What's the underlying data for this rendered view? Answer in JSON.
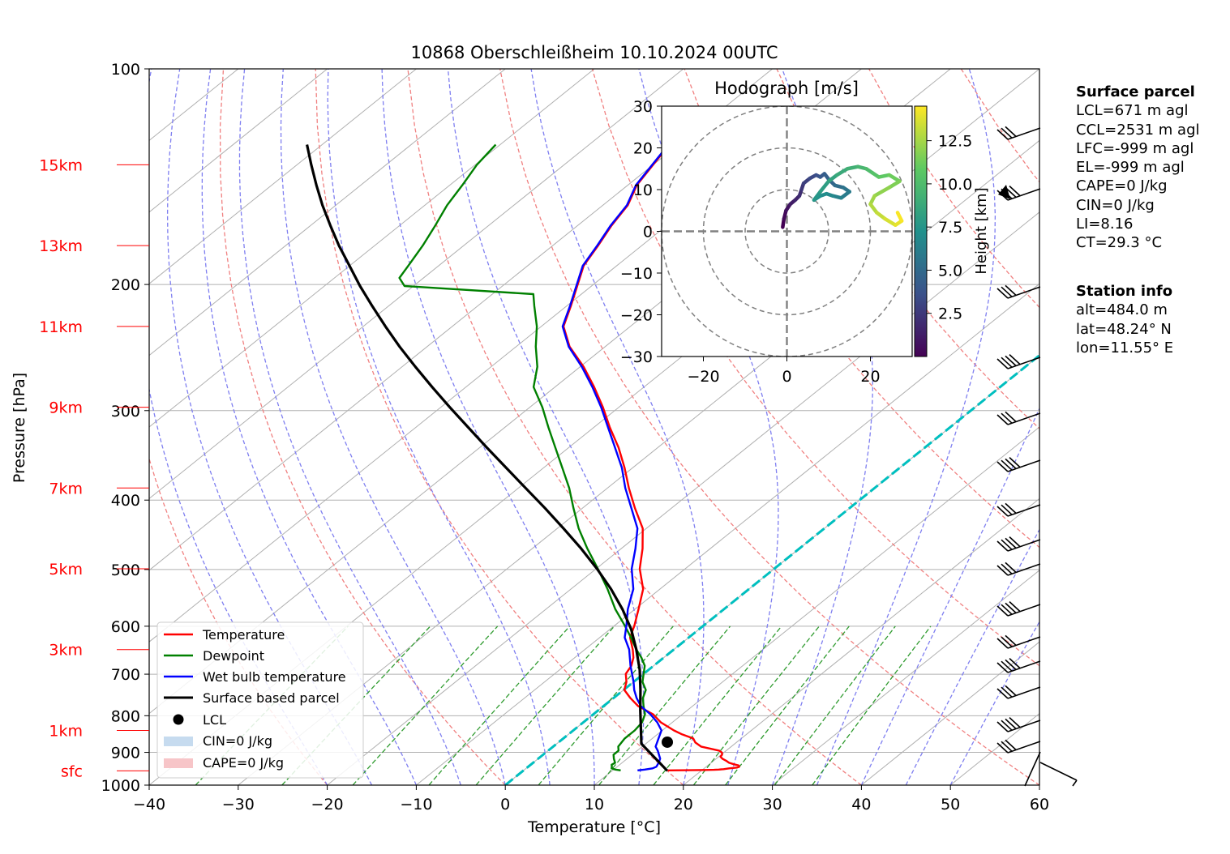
{
  "title": "10868 Oberschleißheim 10.10.2024 00UTC",
  "axes": {
    "xlabel": "Temperature [°C]",
    "ylabel": "Pressure [hPa]",
    "x_ticks": [
      "−40",
      "−30",
      "−20",
      "−10",
      "0",
      "10",
      "20",
      "30",
      "40",
      "50",
      "60"
    ],
    "y_ticks": [
      "100",
      "200",
      "300",
      "400",
      "500",
      "600",
      "700",
      "800",
      "900",
      "1000"
    ],
    "height_labels": [
      "15km",
      "13km",
      "11km",
      "9km",
      "7km",
      "5km",
      "3km",
      "1km",
      "sfc"
    ]
  },
  "legend": {
    "temperature": "Temperature",
    "dewpoint": "Dewpoint",
    "wetbulb": "Wet bulb temperature",
    "parcel": "Surface based parcel",
    "lcl": "LCL",
    "cin": "CIN=0 J/kg",
    "cape": "CAPE=0 J/kg"
  },
  "hodograph": {
    "title": "Hodograph [m/s]",
    "x_ticks": [
      "−20",
      "0",
      "20"
    ],
    "y_ticks": [
      "30",
      "20",
      "10",
      "0",
      "−10",
      "−20",
      "−30"
    ],
    "colorbar_label": "Height [km]",
    "colorbar_ticks": [
      "12.5",
      "10.0",
      "7.5",
      "5.0",
      "2.5"
    ]
  },
  "surface_parcel": {
    "heading": "Surface parcel",
    "lines": [
      "LCL=671 m agl",
      "CCL=2531 m agl",
      "LFC=-999 m agl",
      "EL=-999 m agl",
      "CAPE=0 J/kg",
      "CIN=0 J/kg",
      "LI=8.16",
      "CT=29.3 °C"
    ]
  },
  "station_info": {
    "heading": "Station info",
    "lines": [
      "alt=484.0 m",
      "lat=48.24° N",
      "lon=11.55° E"
    ]
  },
  "colors": {
    "temperature": "#ff0000",
    "dewpoint": "#008000",
    "wetbulb": "#0000ff",
    "parcel": "#000000",
    "height_labels": "#ff0000",
    "freezing_line": "#00bfbf"
  },
  "chart_data": {
    "type": "line",
    "title": "10868 Oberschleißheim 10.10.2024 00UTC",
    "xlabel": "Temperature [°C]",
    "ylabel": "Pressure [hPa]",
    "xlim": [
      -40,
      60
    ],
    "ylim": [
      1000,
      100
    ],
    "y_scale": "log",
    "skew": true,
    "grid": true,
    "legend_position": "lower-left",
    "series": [
      {
        "name": "Temperature",
        "points": [
          [
            10,
            16.2
          ],
          [
            15,
            18.5
          ],
          [
            20,
            20.4
          ],
          [
            25,
            21.3
          ],
          [
            30,
            21.8
          ],
          [
            40,
            22.3
          ],
          [
            60,
            22.8
          ],
          [
            80,
            23.6
          ],
          [
            100,
            23.7
          ],
          [
            130,
            23.5
          ],
          [
            160,
            22.8
          ],
          [
            200,
            22.0
          ],
          [
            250,
            21.4
          ],
          [
            300,
            20.7
          ],
          [
            350,
            20.2
          ],
          [
            400,
            20.1
          ],
          [
            450,
            19.8
          ],
          [
            500,
            19.2
          ],
          [
            550,
            17.9
          ],
          [
            600,
            16.6
          ],
          [
            700,
            15.4
          ],
          [
            800,
            14.6
          ],
          [
            900,
            12.8
          ],
          [
            1000,
            11.3
          ],
          [
            1200,
            8.7
          ],
          [
            1400,
            6.7
          ],
          [
            1600,
            3.9
          ],
          [
            1800,
            1.9
          ],
          [
            2000,
            0.1
          ],
          [
            2200,
            -0.8
          ],
          [
            2400,
            -2.0
          ],
          [
            2600,
            -2.5
          ],
          [
            2800,
            -3.4
          ],
          [
            3000,
            -4.6
          ],
          [
            3300,
            -6.6
          ],
          [
            3600,
            -7.8
          ],
          [
            4000,
            -9.6
          ],
          [
            4500,
            -11.9
          ],
          [
            5000,
            -15.1
          ],
          [
            5500,
            -17.6
          ],
          [
            6000,
            -20.4
          ],
          [
            6500,
            -24.1
          ],
          [
            7000,
            -27.6
          ],
          [
            7500,
            -30.9
          ],
          [
            8000,
            -34.4
          ],
          [
            8500,
            -38.2
          ],
          [
            9000,
            -41.8
          ],
          [
            9500,
            -45.6
          ],
          [
            10000,
            -49.6
          ],
          [
            10500,
            -54.0
          ],
          [
            11000,
            -57.5
          ],
          [
            11500,
            -59.5
          ],
          [
            12000,
            -61.6
          ],
          [
            12500,
            -63.7
          ],
          [
            13000,
            -64.9
          ],
          [
            13500,
            -66.2
          ],
          [
            14000,
            -67.2
          ],
          [
            14500,
            -69.0
          ],
          [
            15000,
            -70.0
          ],
          [
            15500,
            -71.0
          ]
        ]
      },
      {
        "name": "Dewpoint",
        "points": [
          [
            10,
            10.9
          ],
          [
            30,
            10.2
          ],
          [
            60,
            9.6
          ],
          [
            100,
            9.4
          ],
          [
            150,
            9.1
          ],
          [
            200,
            9.2
          ],
          [
            300,
            8.5
          ],
          [
            400,
            7.9
          ],
          [
            500,
            7.9
          ],
          [
            600,
            7.3
          ],
          [
            800,
            6.9
          ],
          [
            1000,
            6.9
          ],
          [
            1200,
            6.6
          ],
          [
            1400,
            5.8
          ],
          [
            1600,
            4.5
          ],
          [
            1800,
            3.3
          ],
          [
            2000,
            2.5
          ],
          [
            2200,
            1.0
          ],
          [
            2400,
            0.0
          ],
          [
            2600,
            -1.0
          ],
          [
            2800,
            -2.5
          ],
          [
            3000,
            -4.2
          ],
          [
            3300,
            -6.5
          ],
          [
            3600,
            -8.9
          ],
          [
            4000,
            -12.2
          ],
          [
            4500,
            -15.9
          ],
          [
            5000,
            -19.8
          ],
          [
            5500,
            -23.8
          ],
          [
            6000,
            -27.6
          ],
          [
            6500,
            -31.0
          ],
          [
            7000,
            -34.3
          ],
          [
            7500,
            -37.9
          ],
          [
            8000,
            -41.5
          ],
          [
            8500,
            -45.1
          ],
          [
            9000,
            -48.6
          ],
          [
            9500,
            -52.4
          ],
          [
            10000,
            -54.8
          ],
          [
            10500,
            -57.8
          ],
          [
            11000,
            -60.5
          ],
          [
            11500,
            -63.6
          ],
          [
            11800,
            -65.4
          ],
          [
            12000,
            -81.0
          ],
          [
            12200,
            -82.7
          ],
          [
            12500,
            -83.4
          ],
          [
            13000,
            -84.6
          ],
          [
            13500,
            -86.0
          ],
          [
            14000,
            -87.5
          ],
          [
            14500,
            -88.6
          ],
          [
            15000,
            -89.8
          ],
          [
            15500,
            -90.5
          ]
        ]
      },
      {
        "name": "Wet bulb temperature",
        "points": [
          [
            10,
            12.8
          ],
          [
            30,
            13.5
          ],
          [
            60,
            14.2
          ],
          [
            100,
            14.4
          ],
          [
            200,
            14.1
          ],
          [
            300,
            13.7
          ],
          [
            400,
            13.0
          ],
          [
            500,
            12.3
          ],
          [
            600,
            11.5
          ],
          [
            800,
            10.7
          ],
          [
            1000,
            9.9
          ],
          [
            1200,
            8.3
          ],
          [
            1400,
            6.4
          ],
          [
            1600,
            4.2
          ],
          [
            1800,
            2.6
          ],
          [
            2000,
            1.2
          ],
          [
            2200,
            0.0
          ],
          [
            2400,
            -1.3
          ],
          [
            2600,
            -2.6
          ],
          [
            2800,
            -3.8
          ],
          [
            3000,
            -5.0
          ],
          [
            3300,
            -7.2
          ],
          [
            3600,
            -8.7
          ],
          [
            4000,
            -10.8
          ],
          [
            4500,
            -13.0
          ],
          [
            5000,
            -16.0
          ],
          [
            5500,
            -18.4
          ],
          [
            6000,
            -21.0
          ],
          [
            6500,
            -24.5
          ],
          [
            7000,
            -28.0
          ],
          [
            7500,
            -31.2
          ],
          [
            8000,
            -34.8
          ],
          [
            8500,
            -38.4
          ],
          [
            9000,
            -42.0
          ],
          [
            9500,
            -45.8
          ],
          [
            10000,
            -49.8
          ],
          [
            10500,
            -54.1
          ],
          [
            11000,
            -57.6
          ],
          [
            11500,
            -59.6
          ],
          [
            12000,
            -61.7
          ],
          [
            12500,
            -63.8
          ],
          [
            13000,
            -65.0
          ],
          [
            13500,
            -66.3
          ],
          [
            14000,
            -67.3
          ],
          [
            14500,
            -69.1
          ],
          [
            15000,
            -70.1
          ],
          [
            15500,
            -71.1
          ]
        ]
      },
      {
        "name": "Surface based parcel",
        "points": [
          [
            0,
            16.2
          ],
          [
            671,
            9.5
          ],
          [
            1000,
            7.6
          ],
          [
            1500,
            4.7
          ],
          [
            2000,
            1.9
          ],
          [
            2500,
            -1.0
          ],
          [
            3000,
            -4.2
          ],
          [
            3500,
            -7.6
          ],
          [
            4000,
            -11.4
          ],
          [
            4500,
            -15.5
          ],
          [
            5000,
            -19.9
          ],
          [
            5500,
            -24.5
          ],
          [
            6000,
            -29.3
          ],
          [
            6500,
            -34.2
          ],
          [
            7000,
            -39.2
          ],
          [
            7500,
            -44.2
          ],
          [
            8000,
            -49.2
          ],
          [
            8500,
            -54.1
          ],
          [
            9000,
            -59.0
          ],
          [
            9500,
            -63.8
          ],
          [
            10000,
            -68.5
          ],
          [
            10500,
            -73.1
          ],
          [
            11000,
            -77.5
          ],
          [
            11500,
            -81.8
          ],
          [
            12000,
            -86.0
          ],
          [
            12500,
            -90.0
          ],
          [
            13000,
            -94.0
          ],
          [
            13500,
            -97.8
          ],
          [
            14000,
            -101.5
          ],
          [
            14500,
            -105.0
          ],
          [
            15000,
            -108.4
          ],
          [
            15500,
            -111.7
          ]
        ]
      }
    ],
    "lcl": {
      "pressure": 871,
      "temperature": 12.2
    },
    "hodograph": {
      "xlim": [
        -30,
        30
      ],
      "ylim": [
        -30,
        30
      ],
      "rings": [
        10,
        20,
        30
      ],
      "colorbar_range_km": [
        0,
        14.5
      ],
      "points": [
        [
          -1.0,
          1.0,
          0.0
        ],
        [
          -0.7,
          3.0,
          0.4
        ],
        [
          -0.2,
          5.0,
          0.8
        ],
        [
          0.8,
          6.5,
          1.2
        ],
        [
          2.0,
          7.5,
          1.6
        ],
        [
          3.0,
          8.5,
          2.0
        ],
        [
          3.5,
          10.0,
          2.4
        ],
        [
          4.0,
          11.5,
          2.8
        ],
        [
          5.5,
          12.7,
          3.2
        ],
        [
          7.0,
          13.5,
          3.6
        ],
        [
          8.0,
          13.0,
          4.0
        ],
        [
          9.0,
          13.8,
          4.4
        ],
        [
          10.0,
          12.5,
          4.8
        ],
        [
          11.5,
          11.0,
          5.2
        ],
        [
          13.5,
          10.5,
          5.6
        ],
        [
          15.0,
          9.5,
          6.0
        ],
        [
          13.0,
          8.0,
          6.4
        ],
        [
          11.0,
          8.5,
          6.8
        ],
        [
          9.5,
          9.0,
          7.0
        ],
        [
          8.0,
          8.5,
          7.2
        ],
        [
          6.5,
          7.5,
          7.6
        ],
        [
          8.0,
          9.5,
          8.0
        ],
        [
          10.0,
          12.0,
          8.4
        ],
        [
          12.0,
          13.5,
          8.8
        ],
        [
          14.5,
          15.0,
          9.2
        ],
        [
          17.0,
          15.5,
          9.6
        ],
        [
          19.0,
          15.0,
          10.0
        ],
        [
          20.5,
          14.0,
          10.4
        ],
        [
          22.0,
          13.0,
          10.8
        ],
        [
          24.5,
          13.5,
          11.2
        ],
        [
          27.0,
          12.0,
          11.6
        ],
        [
          24.5,
          10.5,
          12.0
        ],
        [
          21.0,
          8.5,
          12.4
        ],
        [
          20.0,
          6.5,
          12.8
        ],
        [
          21.5,
          4.5,
          13.2
        ],
        [
          23.5,
          3.0,
          13.6
        ],
        [
          26.0,
          1.5,
          14.0
        ],
        [
          27.5,
          2.5,
          14.4
        ],
        [
          26.5,
          4.5,
          14.5
        ]
      ]
    }
  }
}
